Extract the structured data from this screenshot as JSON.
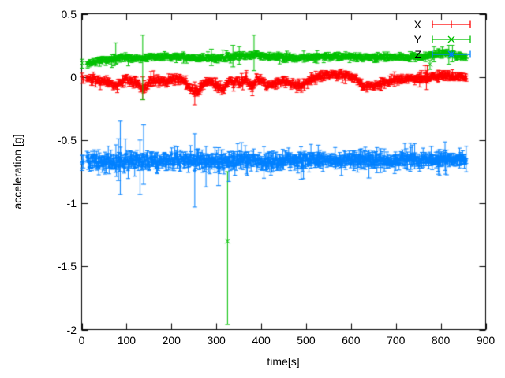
{
  "chart_data": {
    "type": "scatter",
    "style": "errorbars",
    "title": "",
    "xlabel": "time[s]",
    "ylabel": "acceleration [g]",
    "xlim": [
      0,
      900
    ],
    "ylim": [
      -2,
      0.5
    ],
    "grid": false,
    "legend_position": "top-right-inside",
    "background_color": "#ffffff",
    "axis_color": "#000000",
    "xticks": {
      "values": [
        0,
        100,
        200,
        300,
        400,
        500,
        600,
        700,
        800,
        900
      ],
      "labels": [
        "0",
        "100",
        "200",
        "300",
        "400",
        "500",
        "600",
        "700",
        "800",
        "900"
      ]
    },
    "yticks": {
      "values": [
        0.5,
        0,
        -0.5,
        -1,
        -1.5,
        -2
      ],
      "labels": [
        "0.5",
        "0",
        "-0.5",
        "-1",
        "-1.5",
        "-2"
      ]
    },
    "seed": 7,
    "sample_dt": 1.15,
    "series": [
      {
        "name": "X",
        "color": "#ff0000",
        "marker": "plus",
        "t_start": 12,
        "t_end": 858,
        "midline": [
          [
            12,
            -0.01
          ],
          [
            25,
            -0.02
          ],
          [
            40,
            -0.03
          ],
          [
            55,
            -0.04
          ],
          [
            70,
            -0.06
          ],
          [
            80,
            -0.07
          ],
          [
            90,
            -0.04
          ],
          [
            100,
            -0.02
          ],
          [
            112,
            -0.03
          ],
          [
            122,
            -0.05
          ],
          [
            133,
            -0.1
          ],
          [
            142,
            -0.08
          ],
          [
            152,
            -0.04
          ],
          [
            163,
            -0.02
          ],
          [
            175,
            -0.03
          ],
          [
            188,
            -0.04
          ],
          [
            200,
            -0.03
          ],
          [
            213,
            -0.01
          ],
          [
            226,
            -0.03
          ],
          [
            240,
            -0.08
          ],
          [
            252,
            -0.12
          ],
          [
            263,
            -0.09
          ],
          [
            272,
            -0.05
          ],
          [
            283,
            -0.03
          ],
          [
            295,
            -0.05
          ],
          [
            307,
            -0.09
          ],
          [
            316,
            -0.1
          ],
          [
            324,
            -0.05
          ],
          [
            331,
            -0.02
          ],
          [
            338,
            -0.06
          ],
          [
            344,
            -0.02
          ],
          [
            351,
            -0.06
          ],
          [
            358,
            -0.03
          ],
          [
            366,
            -0.01
          ],
          [
            374,
            -0.06
          ],
          [
            382,
            -0.08
          ],
          [
            390,
            -0.01
          ],
          [
            400,
            -0.02
          ],
          [
            412,
            -0.06
          ],
          [
            424,
            -0.07
          ],
          [
            436,
            -0.04
          ],
          [
            450,
            -0.03
          ],
          [
            465,
            -0.05
          ],
          [
            478,
            -0.07
          ],
          [
            492,
            -0.06
          ],
          [
            505,
            -0.03
          ],
          [
            518,
            0.0
          ],
          [
            535,
            0.01
          ],
          [
            555,
            0.02
          ],
          [
            575,
            0.02
          ],
          [
            595,
            0.01
          ],
          [
            610,
            -0.01
          ],
          [
            622,
            -0.06
          ],
          [
            634,
            -0.08
          ],
          [
            648,
            -0.07
          ],
          [
            662,
            -0.06
          ],
          [
            676,
            -0.05
          ],
          [
            690,
            -0.03
          ],
          [
            705,
            -0.02
          ],
          [
            720,
            -0.02
          ],
          [
            737,
            -0.01
          ],
          [
            750,
            -0.02
          ],
          [
            760,
            -0.01
          ],
          [
            770,
            -0.01
          ],
          [
            780,
            0.0
          ],
          [
            795,
            0.01
          ],
          [
            810,
            0.01
          ],
          [
            830,
            0.0
          ],
          [
            858,
            0.0
          ]
        ],
        "noise_profile": [
          [
            12,
            0.018
          ],
          [
            100,
            0.02
          ],
          [
            300,
            0.022
          ],
          [
            500,
            0.02
          ],
          [
            858,
            0.014
          ]
        ],
        "err_base": 0.018,
        "err_extra": 0.04,
        "err_bigp": 0.12,
        "specials": [
          {
            "t": 1,
            "v": 0.0,
            "lo": -0.05,
            "hi": 0.03
          },
          {
            "t": 4,
            "v": -0.02,
            "lo": -0.05,
            "hi": 0.01
          },
          {
            "t": 136,
            "v": -0.08,
            "lo": -0.18,
            "hi": 0.0
          },
          {
            "t": 252,
            "v": -0.13,
            "lo": -0.22,
            "hi": -0.04
          },
          {
            "t": 753,
            "v": -0.02,
            "lo": -0.08,
            "hi": 0.03
          },
          {
            "t": 757,
            "v": 0.0,
            "lo": -0.05,
            "hi": 0.05
          },
          {
            "t": 765,
            "v": 0.03,
            "lo": -0.04,
            "hi": 0.09
          },
          {
            "t": 768,
            "v": -0.03,
            "lo": -0.1,
            "hi": 0.05
          },
          {
            "t": 770,
            "v": 0.02,
            "lo": -0.05,
            "hi": 0.09
          }
        ]
      },
      {
        "name": "Y",
        "color": "#00c000",
        "marker": "cross",
        "t_start": 12,
        "t_end": 858,
        "midline": [
          [
            12,
            0.1
          ],
          [
            20,
            0.11
          ],
          [
            30,
            0.12
          ],
          [
            45,
            0.13
          ],
          [
            60,
            0.135
          ],
          [
            80,
            0.145
          ],
          [
            100,
            0.15
          ],
          [
            125,
            0.15
          ],
          [
            150,
            0.155
          ],
          [
            180,
            0.16
          ],
          [
            210,
            0.16
          ],
          [
            240,
            0.158
          ],
          [
            265,
            0.152
          ],
          [
            290,
            0.15
          ],
          [
            310,
            0.152
          ],
          [
            330,
            0.16
          ],
          [
            350,
            0.168
          ],
          [
            368,
            0.17
          ],
          [
            385,
            0.178
          ],
          [
            395,
            0.17
          ],
          [
            410,
            0.162
          ],
          [
            430,
            0.158
          ],
          [
            455,
            0.152
          ],
          [
            480,
            0.15
          ],
          [
            505,
            0.15
          ],
          [
            530,
            0.155
          ],
          [
            560,
            0.16
          ],
          [
            590,
            0.16
          ],
          [
            620,
            0.157
          ],
          [
            650,
            0.155
          ],
          [
            680,
            0.155
          ],
          [
            710,
            0.158
          ],
          [
            735,
            0.16
          ],
          [
            755,
            0.162
          ],
          [
            770,
            0.165
          ],
          [
            785,
            0.172
          ],
          [
            798,
            0.185
          ],
          [
            808,
            0.188
          ],
          [
            820,
            0.178
          ],
          [
            835,
            0.168
          ],
          [
            858,
            0.16
          ]
        ],
        "noise_profile": [
          [
            12,
            0.015
          ],
          [
            858,
            0.015
          ]
        ],
        "err_base": 0.015,
        "err_extra": 0.04,
        "err_bigp": 0.1,
        "specials": [
          {
            "t": 1,
            "v": 0.11,
            "lo": 0.07,
            "hi": 0.14
          },
          {
            "t": 76,
            "v": 0.15,
            "lo": 0.1,
            "hi": 0.27
          },
          {
            "t": 136,
            "v": 0.14,
            "lo": -0.18,
            "hi": 0.33
          },
          {
            "t": 289,
            "v": 0.15,
            "lo": 0.09,
            "hi": 0.22
          },
          {
            "t": 325,
            "v": -1.3,
            "lo": -1.96,
            "hi": -0.75
          },
          {
            "t": 337,
            "v": 0.16,
            "lo": 0.08,
            "hi": 0.25
          },
          {
            "t": 351,
            "v": 0.17,
            "lo": 0.1,
            "hi": 0.24
          },
          {
            "t": 384,
            "v": 0.18,
            "lo": 0.05,
            "hi": 0.33
          },
          {
            "t": 732,
            "v": 0.16,
            "lo": 0.12,
            "hi": 0.2
          },
          {
            "t": 776,
            "v": 0.1,
            "lo": 0.06,
            "hi": 0.13
          },
          {
            "t": 785,
            "v": 0.17,
            "lo": 0.12,
            "hi": 0.24
          },
          {
            "t": 818,
            "v": 0.18,
            "lo": 0.1,
            "hi": 0.25
          },
          {
            "t": 826,
            "v": 0.18,
            "lo": 0.12,
            "hi": 0.25
          }
        ]
      },
      {
        "name": "Z",
        "color": "#0080ff",
        "marker": "star",
        "t_start": 12,
        "t_end": 858,
        "midline": [
          [
            12,
            -0.67
          ],
          [
            40,
            -0.672
          ],
          [
            70,
            -0.665
          ],
          [
            100,
            -0.668
          ],
          [
            130,
            -0.672
          ],
          [
            160,
            -0.665
          ],
          [
            190,
            -0.663
          ],
          [
            220,
            -0.66
          ],
          [
            250,
            -0.665
          ],
          [
            280,
            -0.672
          ],
          [
            310,
            -0.668
          ],
          [
            340,
            -0.66
          ],
          [
            370,
            -0.662
          ],
          [
            400,
            -0.668
          ],
          [
            430,
            -0.663
          ],
          [
            460,
            -0.659
          ],
          [
            490,
            -0.658
          ],
          [
            520,
            -0.656
          ],
          [
            550,
            -0.66
          ],
          [
            580,
            -0.664
          ],
          [
            610,
            -0.658
          ],
          [
            640,
            -0.655
          ],
          [
            670,
            -0.66
          ],
          [
            700,
            -0.66
          ],
          [
            730,
            -0.656
          ],
          [
            760,
            -0.658
          ],
          [
            790,
            -0.657
          ],
          [
            820,
            -0.653
          ],
          [
            858,
            -0.65
          ]
        ],
        "noise_profile": [
          [
            12,
            0.04
          ],
          [
            150,
            0.045
          ],
          [
            300,
            0.04
          ],
          [
            450,
            0.035
          ],
          [
            600,
            0.028
          ],
          [
            750,
            0.024
          ],
          [
            858,
            0.02
          ]
        ],
        "err_base": 0.032,
        "err_extra": 0.09,
        "err_bigp": 0.18,
        "specials": [
          {
            "t": 1,
            "v": -0.68,
            "lo": -0.74,
            "hi": -0.62
          },
          {
            "t": 3,
            "v": -0.67,
            "lo": -0.72,
            "hi": -0.62
          },
          {
            "t": 82,
            "v": -0.66,
            "lo": -0.82,
            "hi": -0.49
          },
          {
            "t": 86,
            "v": -0.64,
            "lo": -0.93,
            "hi": -0.35
          },
          {
            "t": 130,
            "v": -0.7,
            "lo": -0.93,
            "hi": -0.5
          },
          {
            "t": 138,
            "v": -0.62,
            "lo": -0.85,
            "hi": -0.38
          },
          {
            "t": 252,
            "v": -0.74,
            "lo": -1.03,
            "hi": -0.45
          },
          {
            "t": 277,
            "v": -0.7,
            "lo": -0.87,
            "hi": -0.55
          },
          {
            "t": 305,
            "v": -0.72,
            "lo": -0.86,
            "hi": -0.56
          },
          {
            "t": 356,
            "v": -0.63,
            "lo": -0.73,
            "hi": -0.52
          },
          {
            "t": 489,
            "v": -0.72,
            "lo": -0.81,
            "hi": -0.6
          },
          {
            "t": 527,
            "v": -0.61,
            "lo": -0.7,
            "hi": -0.54
          },
          {
            "t": 640,
            "v": -0.7,
            "lo": -0.8,
            "hi": -0.58
          },
          {
            "t": 779,
            "v": -0.62,
            "lo": -0.7,
            "hi": -0.55
          },
          {
            "t": 795,
            "v": -0.68,
            "lo": -0.77,
            "hi": -0.58
          }
        ]
      }
    ]
  }
}
